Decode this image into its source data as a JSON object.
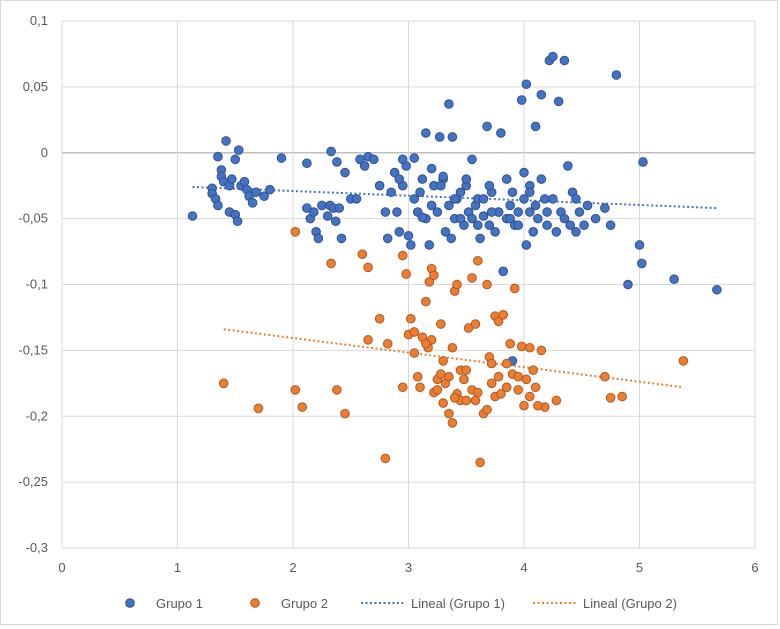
{
  "chart_data": {
    "type": "scatter",
    "title": "",
    "xlabel": "",
    "ylabel": "",
    "xlim": [
      0,
      6
    ],
    "ylim": [
      -0.3,
      0.1
    ],
    "x_ticks": [
      0,
      1,
      2,
      3,
      4,
      5,
      6
    ],
    "x_tick_labels": [
      "0",
      "1",
      "2",
      "3",
      "4",
      "5",
      "6"
    ],
    "y_ticks": [
      0.1,
      0.05,
      0,
      -0.05,
      -0.1,
      -0.15,
      -0.2,
      -0.25,
      -0.3
    ],
    "y_tick_labels": [
      "0,1",
      "0,05",
      "0",
      "-0,05",
      "-0,1",
      "-0,15",
      "-0,2",
      "-0,25",
      "-0,3"
    ],
    "grid": true,
    "legend_position": "bottom",
    "legend": [
      "Grupo 1",
      "Grupo 2",
      "Lineal (Grupo 1)",
      "Lineal (Grupo 2)"
    ],
    "series": [
      {
        "name": "Grupo 1",
        "color": "#4472c4",
        "edge_color": "#2f528f",
        "points": [
          [
            1.13,
            -0.048
          ],
          [
            1.3,
            -0.027
          ],
          [
            1.3,
            -0.031
          ],
          [
            1.33,
            -0.035
          ],
          [
            1.35,
            -0.04
          ],
          [
            1.35,
            -0.003
          ],
          [
            1.38,
            -0.013
          ],
          [
            1.38,
            -0.018
          ],
          [
            1.4,
            -0.022
          ],
          [
            1.42,
            0.009
          ],
          [
            1.45,
            -0.025
          ],
          [
            1.45,
            -0.045
          ],
          [
            1.47,
            -0.02
          ],
          [
            1.5,
            -0.005
          ],
          [
            1.5,
            -0.047
          ],
          [
            1.52,
            -0.052
          ],
          [
            1.53,
            0.002
          ],
          [
            1.55,
            -0.025
          ],
          [
            1.58,
            -0.022
          ],
          [
            1.6,
            -0.028
          ],
          [
            1.62,
            -0.033
          ],
          [
            1.65,
            -0.038
          ],
          [
            1.68,
            -0.03
          ],
          [
            1.75,
            -0.033
          ],
          [
            1.8,
            -0.028
          ],
          [
            1.9,
            -0.004
          ],
          [
            2.12,
            -0.008
          ],
          [
            2.12,
            -0.042
          ],
          [
            2.15,
            -0.05
          ],
          [
            2.18,
            -0.045
          ],
          [
            2.2,
            -0.06
          ],
          [
            2.22,
            -0.065
          ],
          [
            2.25,
            -0.04
          ],
          [
            2.3,
            -0.048
          ],
          [
            2.32,
            -0.04
          ],
          [
            2.33,
            0.001
          ],
          [
            2.35,
            -0.042
          ],
          [
            2.37,
            -0.052
          ],
          [
            2.38,
            -0.007
          ],
          [
            2.4,
            -0.042
          ],
          [
            2.42,
            -0.065
          ],
          [
            2.45,
            -0.015
          ],
          [
            2.5,
            -0.035
          ],
          [
            2.55,
            -0.035
          ],
          [
            2.58,
            -0.005
          ],
          [
            2.62,
            -0.01
          ],
          [
            2.65,
            -0.003
          ],
          [
            2.7,
            -0.005
          ],
          [
            2.75,
            -0.025
          ],
          [
            2.8,
            -0.045
          ],
          [
            2.82,
            -0.065
          ],
          [
            2.85,
            -0.03
          ],
          [
            2.88,
            -0.015
          ],
          [
            2.9,
            -0.045
          ],
          [
            2.92,
            -0.06
          ],
          [
            2.95,
            -0.025
          ],
          [
            2.98,
            -0.01
          ],
          [
            3.0,
            -0.063
          ],
          [
            3.02,
            -0.07
          ],
          [
            3.05,
            -0.035
          ],
          [
            3.08,
            -0.045
          ],
          [
            3.1,
            -0.03
          ],
          [
            3.12,
            -0.02
          ],
          [
            3.15,
            0.015
          ],
          [
            3.15,
            -0.05
          ],
          [
            3.18,
            -0.07
          ],
          [
            3.2,
            -0.04
          ],
          [
            3.22,
            -0.025
          ],
          [
            3.25,
            -0.045
          ],
          [
            3.27,
            0.012
          ],
          [
            3.3,
            -0.02
          ],
          [
            3.32,
            -0.06
          ],
          [
            3.35,
            0.037
          ],
          [
            3.37,
            -0.065
          ],
          [
            3.38,
            0.012
          ],
          [
            3.4,
            -0.05
          ],
          [
            3.42,
            -0.035
          ],
          [
            3.45,
            -0.03
          ],
          [
            3.48,
            -0.055
          ],
          [
            3.5,
            -0.025
          ],
          [
            3.52,
            -0.045
          ],
          [
            3.55,
            -0.05
          ],
          [
            3.58,
            -0.04
          ],
          [
            3.6,
            -0.035
          ],
          [
            3.62,
            -0.065
          ],
          [
            3.65,
            -0.048
          ],
          [
            3.68,
            0.02
          ],
          [
            3.7,
            -0.055
          ],
          [
            3.72,
            -0.03
          ],
          [
            3.75,
            -0.06
          ],
          [
            3.78,
            -0.045
          ],
          [
            3.8,
            0.015
          ],
          [
            3.82,
            -0.09
          ],
          [
            3.85,
            -0.05
          ],
          [
            3.88,
            -0.04
          ],
          [
            3.9,
            -0.158
          ],
          [
            3.92,
            -0.055
          ],
          [
            3.95,
            -0.045
          ],
          [
            3.98,
            0.04
          ],
          [
            4.0,
            -0.035
          ],
          [
            4.02,
            0.052
          ],
          [
            4.02,
            -0.07
          ],
          [
            4.05,
            -0.045
          ],
          [
            4.08,
            -0.06
          ],
          [
            4.1,
            0.02
          ],
          [
            4.12,
            -0.05
          ],
          [
            4.15,
            0.044
          ],
          [
            4.18,
            -0.035
          ],
          [
            4.2,
            -0.055
          ],
          [
            4.22,
            0.07
          ],
          [
            4.25,
            0.073
          ],
          [
            4.28,
            -0.06
          ],
          [
            4.3,
            0.039
          ],
          [
            4.32,
            -0.045
          ],
          [
            4.35,
            0.07
          ],
          [
            4.38,
            -0.01
          ],
          [
            4.4,
            -0.055
          ],
          [
            4.42,
            -0.03
          ],
          [
            4.45,
            -0.06
          ],
          [
            4.48,
            -0.045
          ],
          [
            4.52,
            -0.055
          ],
          [
            4.55,
            -0.04
          ],
          [
            4.62,
            -0.05
          ],
          [
            4.7,
            -0.042
          ],
          [
            4.75,
            -0.055
          ],
          [
            4.8,
            0.059
          ],
          [
            4.9,
            -0.1
          ],
          [
            5.0,
            -0.07
          ],
          [
            5.02,
            -0.084
          ],
          [
            5.03,
            -0.007
          ],
          [
            5.3,
            -0.096
          ],
          [
            5.67,
            -0.104
          ],
          [
            3.05,
            -0.004
          ],
          [
            3.12,
            -0.049
          ],
          [
            3.2,
            -0.012
          ],
          [
            3.28,
            -0.025
          ],
          [
            3.3,
            -0.018
          ],
          [
            3.4,
            -0.035
          ],
          [
            3.5,
            -0.02
          ],
          [
            3.55,
            -0.005
          ],
          [
            3.65,
            -0.035
          ],
          [
            3.7,
            -0.025
          ],
          [
            3.78,
            -0.045
          ],
          [
            3.85,
            -0.02
          ],
          [
            3.9,
            -0.03
          ],
          [
            3.95,
            -0.055
          ],
          [
            4.0,
            -0.015
          ],
          [
            4.05,
            -0.025
          ],
          [
            4.1,
            -0.04
          ],
          [
            4.15,
            -0.02
          ],
          [
            4.25,
            -0.035
          ],
          [
            4.35,
            -0.05
          ],
          [
            4.45,
            -0.035
          ],
          [
            2.95,
            -0.005
          ],
          [
            2.92,
            -0.02
          ],
          [
            3.35,
            -0.04
          ],
          [
            3.45,
            -0.05
          ],
          [
            3.6,
            -0.055
          ],
          [
            3.72,
            -0.045
          ],
          [
            3.88,
            -0.05
          ],
          [
            4.05,
            -0.03
          ],
          [
            4.2,
            -0.045
          ]
        ]
      },
      {
        "name": "Grupo 2",
        "color": "#ed7d31",
        "edge_color": "#ae5a21",
        "points": [
          [
            1.4,
            -0.175
          ],
          [
            1.7,
            -0.194
          ],
          [
            2.02,
            -0.06
          ],
          [
            2.02,
            -0.18
          ],
          [
            2.08,
            -0.193
          ],
          [
            2.33,
            -0.084
          ],
          [
            2.38,
            -0.18
          ],
          [
            2.45,
            -0.198
          ],
          [
            2.6,
            -0.077
          ],
          [
            2.65,
            -0.087
          ],
          [
            2.65,
            -0.142
          ],
          [
            2.75,
            -0.126
          ],
          [
            2.8,
            -0.232
          ],
          [
            2.82,
            -0.145
          ],
          [
            2.95,
            -0.078
          ],
          [
            2.95,
            -0.178
          ],
          [
            2.98,
            -0.092
          ],
          [
            3.0,
            -0.138
          ],
          [
            3.02,
            -0.126
          ],
          [
            3.05,
            -0.136
          ],
          [
            3.05,
            -0.152
          ],
          [
            3.08,
            -0.17
          ],
          [
            3.1,
            -0.178
          ],
          [
            3.12,
            -0.14
          ],
          [
            3.15,
            -0.113
          ],
          [
            3.17,
            -0.148
          ],
          [
            3.18,
            -0.098
          ],
          [
            3.2,
            -0.088
          ],
          [
            3.2,
            -0.142
          ],
          [
            3.22,
            -0.093
          ],
          [
            3.22,
            -0.182
          ],
          [
            3.25,
            -0.172
          ],
          [
            3.28,
            -0.13
          ],
          [
            3.28,
            -0.168
          ],
          [
            3.3,
            -0.19
          ],
          [
            3.32,
            -0.175
          ],
          [
            3.35,
            -0.17
          ],
          [
            3.35,
            -0.198
          ],
          [
            3.38,
            -0.148
          ],
          [
            3.38,
            -0.205
          ],
          [
            3.4,
            -0.105
          ],
          [
            3.42,
            -0.1
          ],
          [
            3.42,
            -0.183
          ],
          [
            3.45,
            -0.165
          ],
          [
            3.45,
            -0.188
          ],
          [
            3.48,
            -0.172
          ],
          [
            3.5,
            -0.188
          ],
          [
            3.52,
            -0.133
          ],
          [
            3.55,
            -0.18
          ],
          [
            3.55,
            -0.095
          ],
          [
            3.58,
            -0.13
          ],
          [
            3.6,
            -0.082
          ],
          [
            3.62,
            -0.235
          ],
          [
            3.65,
            -0.198
          ],
          [
            3.68,
            -0.1
          ],
          [
            3.7,
            -0.155
          ],
          [
            3.72,
            -0.175
          ],
          [
            3.75,
            -0.185
          ],
          [
            3.75,
            -0.124
          ],
          [
            3.78,
            -0.128
          ],
          [
            3.8,
            -0.183
          ],
          [
            3.82,
            -0.123
          ],
          [
            3.85,
            -0.178
          ],
          [
            3.88,
            -0.145
          ],
          [
            3.9,
            -0.168
          ],
          [
            3.92,
            -0.103
          ],
          [
            3.95,
            -0.18
          ],
          [
            3.98,
            -0.147
          ],
          [
            4.0,
            -0.192
          ],
          [
            4.02,
            -0.172
          ],
          [
            4.05,
            -0.148
          ],
          [
            4.05,
            -0.185
          ],
          [
            4.08,
            -0.165
          ],
          [
            4.1,
            -0.178
          ],
          [
            4.15,
            -0.15
          ],
          [
            4.18,
            -0.193
          ],
          [
            4.28,
            -0.188
          ],
          [
            4.7,
            -0.17
          ],
          [
            4.75,
            -0.186
          ],
          [
            4.85,
            -0.185
          ],
          [
            5.38,
            -0.158
          ],
          [
            3.6,
            -0.182
          ],
          [
            3.68,
            -0.195
          ],
          [
            3.72,
            -0.16
          ],
          [
            3.5,
            -0.165
          ],
          [
            3.4,
            -0.186
          ],
          [
            3.25,
            -0.18
          ],
          [
            3.15,
            -0.145
          ],
          [
            3.85,
            -0.16
          ],
          [
            3.95,
            -0.17
          ],
          [
            4.12,
            -0.192
          ],
          [
            3.78,
            -0.17
          ],
          [
            3.58,
            -0.188
          ],
          [
            3.3,
            -0.158
          ]
        ]
      },
      {
        "name": "Lineal (Grupo 1)",
        "kind": "trendline",
        "color": "#4472c4",
        "x": [
          1.13,
          5.67
        ],
        "y": [
          -0.026,
          -0.042
        ]
      },
      {
        "name": "Lineal (Grupo 2)",
        "kind": "trendline",
        "color": "#ed7d31",
        "x": [
          1.4,
          5.38
        ],
        "y": [
          -0.134,
          -0.178
        ]
      }
    ]
  }
}
